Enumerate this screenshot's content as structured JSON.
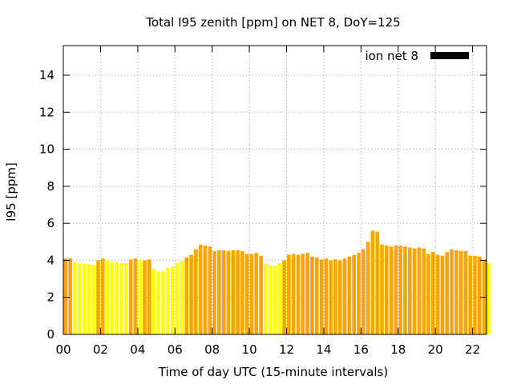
{
  "chart_data": {
    "type": "bar",
    "title": "Total I95 zenith [ppm] on NET 8, DoY=125",
    "xlabel": "Time of day UTC (15-minute intervals)",
    "ylabel": "I95 [ppm]",
    "xlim": [
      0,
      22.75
    ],
    "ylim": [
      0,
      15.6
    ],
    "x_ticks": [
      {
        "v": 0,
        "label": "00"
      },
      {
        "v": 2,
        "label": "02"
      },
      {
        "v": 4,
        "label": "04"
      },
      {
        "v": 6,
        "label": "06"
      },
      {
        "v": 8,
        "label": "08"
      },
      {
        "v": 10,
        "label": "10"
      },
      {
        "v": 12,
        "label": "12"
      },
      {
        "v": 14,
        "label": "14"
      },
      {
        "v": 16,
        "label": "16"
      },
      {
        "v": 18,
        "label": "18"
      },
      {
        "v": 20,
        "label": "20"
      },
      {
        "v": 22,
        "label": "22"
      }
    ],
    "y_ticks": [
      {
        "v": 0,
        "label": "0"
      },
      {
        "v": 2,
        "label": "2"
      },
      {
        "v": 4,
        "label": "4"
      },
      {
        "v": 6,
        "label": "6"
      },
      {
        "v": 8,
        "label": "8"
      },
      {
        "v": 10,
        "label": "10"
      },
      {
        "v": 12,
        "label": "12"
      },
      {
        "v": 14,
        "label": "14"
      }
    ],
    "grid": true,
    "legend": {
      "position": "top-right",
      "label": "ion net 8",
      "color": "#000000"
    },
    "colors": {
      "yellow": "#ffff00",
      "orange": "#ffa500"
    },
    "series": [
      {
        "bin_hours": 0.25,
        "values": [
          4.1,
          4.1,
          3.9,
          3.85,
          3.8,
          3.8,
          3.75,
          4.0,
          4.1,
          4.0,
          3.9,
          3.9,
          3.85,
          3.85,
          4.05,
          4.1,
          4.0,
          4.0,
          4.05,
          3.55,
          3.4,
          3.4,
          3.6,
          3.65,
          3.85,
          3.95,
          4.15,
          4.3,
          4.6,
          4.85,
          4.8,
          4.75,
          4.5,
          4.55,
          4.55,
          4.5,
          4.55,
          4.55,
          4.5,
          4.35,
          4.35,
          4.4,
          4.25,
          3.85,
          3.75,
          3.7,
          3.85,
          4.0,
          4.3,
          4.35,
          4.3,
          4.35,
          4.4,
          4.2,
          4.15,
          4.05,
          4.1,
          4.0,
          4.05,
          4.0,
          4.1,
          4.2,
          4.3,
          4.4,
          4.6,
          5.0,
          5.6,
          5.55,
          4.85,
          4.8,
          4.75,
          4.8,
          4.8,
          4.75,
          4.7,
          4.65,
          4.7,
          4.65,
          4.35,
          4.45,
          4.3,
          4.25,
          4.45,
          4.6,
          4.55,
          4.5,
          4.5,
          4.25,
          4.25,
          4.2,
          4.0,
          3.85
        ],
        "colors": [
          "orange",
          "orange",
          "yellow",
          "yellow",
          "yellow",
          "yellow",
          "yellow",
          "orange",
          "orange",
          "yellow",
          "yellow",
          "yellow",
          "yellow",
          "yellow",
          "orange",
          "orange",
          "yellow",
          "orange",
          "orange",
          "yellow",
          "yellow",
          "yellow",
          "yellow",
          "yellow",
          "yellow",
          "yellow",
          "orange",
          "orange",
          "orange",
          "orange",
          "orange",
          "orange",
          "orange",
          "orange",
          "orange",
          "orange",
          "orange",
          "orange",
          "orange",
          "orange",
          "orange",
          "orange",
          "orange",
          "yellow",
          "yellow",
          "yellow",
          "yellow",
          "orange",
          "orange",
          "orange",
          "orange",
          "orange",
          "orange",
          "orange",
          "orange",
          "orange",
          "orange",
          "orange",
          "orange",
          "orange",
          "orange",
          "orange",
          "orange",
          "orange",
          "orange",
          "orange",
          "orange",
          "orange",
          "orange",
          "orange",
          "orange",
          "orange",
          "orange",
          "orange",
          "orange",
          "orange",
          "orange",
          "orange",
          "orange",
          "orange",
          "orange",
          "orange",
          "orange",
          "orange",
          "orange",
          "orange",
          "orange",
          "orange",
          "orange",
          "orange",
          "orange",
          "yellow"
        ]
      }
    ]
  }
}
